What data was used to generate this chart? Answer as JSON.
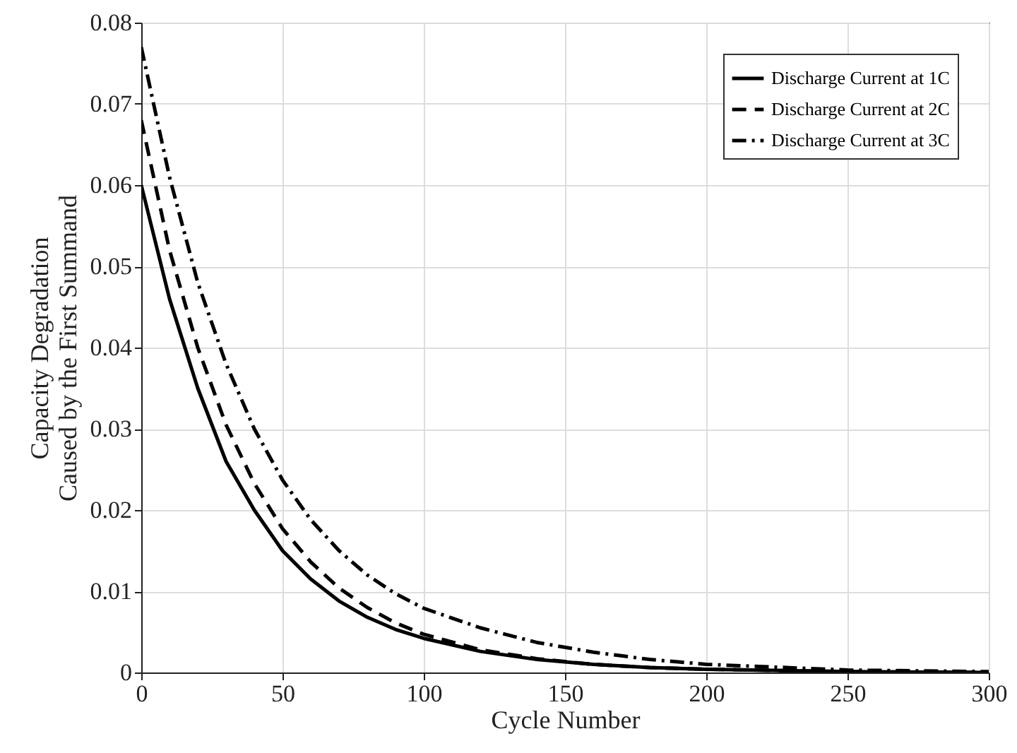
{
  "chart_data": {
    "type": "line",
    "xlabel": "Cycle Number",
    "ylabel": "Capacity Degradation\nCaused by the First Summand",
    "x": [
      0,
      10,
      20,
      30,
      40,
      50,
      60,
      70,
      80,
      90,
      100,
      120,
      140,
      160,
      180,
      200,
      250,
      300
    ],
    "series": [
      {
        "name": "Discharge Current at 1C",
        "color": "#000000",
        "line_style": "solid",
        "values": [
          0.06,
          0.046,
          0.035,
          0.026,
          0.02,
          0.015,
          0.0115,
          0.0088,
          0.0068,
          0.0053,
          0.0042,
          0.0026,
          0.0016,
          0.001,
          0.0006,
          0.0004,
          0.0001,
          0.0
        ]
      },
      {
        "name": "Discharge Current at 2C",
        "color": "#000000",
        "line_style": "dashed",
        "values": [
          0.068,
          0.052,
          0.04,
          0.0305,
          0.0233,
          0.0177,
          0.0136,
          0.0104,
          0.008,
          0.0061,
          0.0047,
          0.0028,
          0.0017,
          0.001,
          0.0006,
          0.0004,
          0.0001,
          0.0
        ]
      },
      {
        "name": "Discharge Current at 3C",
        "color": "#000000",
        "line_style": "dashdot",
        "values": [
          0.077,
          0.061,
          0.048,
          0.038,
          0.03,
          0.0237,
          0.0188,
          0.015,
          0.012,
          0.0097,
          0.0079,
          0.0055,
          0.0037,
          0.0025,
          0.0016,
          0.001,
          0.0003,
          0.0001
        ]
      }
    ],
    "xlim": [
      0,
      300
    ],
    "xticks": [
      0,
      50,
      100,
      150,
      200,
      250,
      300
    ],
    "ylim": [
      0,
      0.08
    ],
    "yticks": [
      0,
      0.01,
      0.02,
      0.03,
      0.04,
      0.05,
      0.06,
      0.07,
      0.08
    ],
    "grid": true,
    "legend": "top right",
    "marker": "none"
  }
}
